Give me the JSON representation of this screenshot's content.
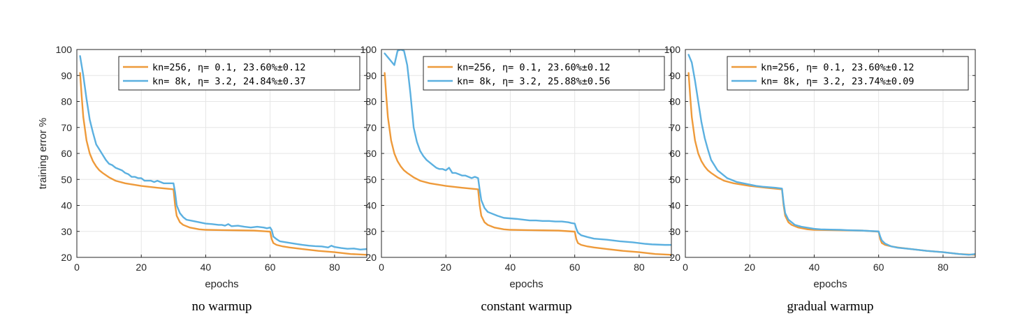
{
  "chart_data": [
    {
      "type": "line",
      "title": "",
      "caption": "no warmup",
      "xlabel": "epochs",
      "ylabel": "training error %",
      "xlim": [
        0,
        90
      ],
      "ylim": [
        20,
        100
      ],
      "xticks": [
        0,
        20,
        40,
        60,
        80
      ],
      "yticks": [
        20,
        30,
        40,
        50,
        60,
        70,
        80,
        90,
        100
      ],
      "grid": true,
      "legend_position": "top-right",
      "series": [
        {
          "name": "kn=256, η= 0.1, 23.60%±0.12",
          "color": "#EE9A3A",
          "x": [
            1,
            1.5,
            2,
            3,
            4,
            5,
            6,
            7,
            8,
            10,
            12,
            15,
            20,
            25,
            30,
            30.5,
            31,
            32,
            33,
            35,
            38,
            40,
            45,
            50,
            55,
            60,
            60.5,
            61,
            62,
            64,
            66,
            70,
            75,
            80,
            85,
            90
          ],
          "y": [
            91,
            82,
            74,
            65,
            60,
            57,
            55,
            53.5,
            52.5,
            50.8,
            49.5,
            48.5,
            47.5,
            46.8,
            46.2,
            40,
            36,
            33.5,
            32.5,
            31.5,
            30.8,
            30.6,
            30.5,
            30.4,
            30.3,
            29.9,
            27,
            25.5,
            24.8,
            24.2,
            23.8,
            23.2,
            22.5,
            22,
            21.3,
            21
          ]
        },
        {
          "name": "kn= 8k, η= 3.2, 24.84%±0.37",
          "color": "#5BB0E0",
          "x": [
            1,
            2,
            3,
            4,
            5,
            6,
            7,
            8,
            9,
            10,
            11,
            12,
            13,
            14,
            15,
            16,
            17,
            18,
            19,
            20,
            21,
            22,
            23,
            24,
            25,
            26,
            27,
            28,
            29,
            30,
            30.5,
            31,
            32,
            33,
            34,
            36,
            38,
            40,
            42,
            44,
            45,
            46,
            47,
            48,
            50,
            52,
            54,
            56,
            58,
            59,
            60,
            60.5,
            61,
            62,
            63,
            65,
            68,
            70,
            72,
            74,
            76,
            78,
            79,
            80,
            82,
            84,
            86,
            88,
            90
          ],
          "y": [
            97.5,
            90,
            81,
            73,
            68,
            63.5,
            61.5,
            59.5,
            57.5,
            56,
            55.5,
            54.5,
            54,
            53.5,
            52.5,
            52,
            51,
            51,
            50.5,
            50.5,
            49.5,
            49.5,
            49.5,
            49,
            49.5,
            49,
            48.5,
            48.5,
            48.5,
            48.5,
            45,
            40,
            37,
            35.5,
            34.5,
            34,
            33.5,
            33,
            32.8,
            32.5,
            32.5,
            32.2,
            32.8,
            32,
            32.2,
            31.8,
            31.5,
            31.8,
            31.5,
            31.2,
            31.5,
            30.5,
            28,
            27,
            26.2,
            25.8,
            25.2,
            24.8,
            24.5,
            24.3,
            24.2,
            23.8,
            24.5,
            24,
            23.6,
            23.3,
            23.4,
            23,
            23.2
          ]
        }
      ]
    },
    {
      "type": "line",
      "title": "",
      "caption": "constant warmup",
      "xlabel": "epochs",
      "ylabel": "",
      "xlim": [
        0,
        90
      ],
      "ylim": [
        20,
        100
      ],
      "xticks": [
        0,
        20,
        40,
        60,
        80
      ],
      "yticks": [
        20,
        30,
        40,
        50,
        60,
        70,
        80,
        90,
        100
      ],
      "grid": true,
      "legend_position": "top-right",
      "series": [
        {
          "name": "kn=256, η= 0.1, 23.60%±0.12",
          "color": "#EE9A3A",
          "x": [
            1,
            1.5,
            2,
            3,
            4,
            5,
            6,
            7,
            8,
            10,
            12,
            15,
            20,
            25,
            30,
            30.5,
            31,
            32,
            33,
            35,
            38,
            40,
            45,
            50,
            55,
            60,
            60.5,
            61,
            62,
            64,
            66,
            70,
            75,
            80,
            85,
            90
          ],
          "y": [
            91,
            82,
            74,
            65,
            60,
            57,
            55,
            53.5,
            52.5,
            50.8,
            49.5,
            48.5,
            47.5,
            46.8,
            46.2,
            40,
            36,
            33.5,
            32.5,
            31.5,
            30.8,
            30.6,
            30.5,
            30.4,
            30.3,
            29.9,
            27,
            25.5,
            24.8,
            24.2,
            23.8,
            23.2,
            22.5,
            22,
            21.3,
            21
          ]
        },
        {
          "name": "kn= 8k, η= 3.2, 25.88%±0.56",
          "color": "#5BB0E0",
          "x": [
            1,
            2,
            3,
            4,
            5,
            6,
            7,
            8,
            9,
            10,
            11,
            12,
            13,
            14,
            15,
            16,
            17,
            18,
            19,
            20,
            21,
            22,
            23,
            24,
            25,
            26,
            27,
            28,
            29,
            30,
            30.5,
            31,
            32,
            33,
            34,
            36,
            38,
            40,
            42,
            44,
            46,
            48,
            50,
            52,
            54,
            56,
            58,
            59,
            60,
            60.5,
            61,
            62,
            64,
            66,
            68,
            70,
            72,
            74,
            76,
            78,
            80,
            82,
            84,
            86,
            88,
            90
          ],
          "y": [
            98.5,
            97,
            95.5,
            94,
            99.5,
            100,
            99.5,
            94,
            83,
            70,
            64.5,
            61,
            59,
            57.5,
            56.5,
            55.5,
            54.5,
            54,
            54,
            53.5,
            54.5,
            52.5,
            52.5,
            52,
            51.5,
            51.5,
            51,
            50.5,
            51,
            50.5,
            46,
            42,
            39,
            37.5,
            37,
            36,
            35.2,
            35,
            34.8,
            34.5,
            34.2,
            34.2,
            34,
            34,
            33.8,
            33.8,
            33.5,
            33.2,
            33,
            31,
            29.5,
            28.5,
            27.8,
            27.2,
            27,
            26.8,
            26.5,
            26.2,
            26,
            25.8,
            25.5,
            25.2,
            25,
            24.9,
            24.8,
            24.8
          ]
        }
      ]
    },
    {
      "type": "line",
      "title": "",
      "caption": "gradual warmup",
      "xlabel": "epochs",
      "ylabel": "",
      "xlim": [
        0,
        90
      ],
      "ylim": [
        20,
        100
      ],
      "xticks": [
        0,
        20,
        40,
        60,
        80
      ],
      "yticks": [
        20,
        30,
        40,
        50,
        60,
        70,
        80,
        90,
        100
      ],
      "grid": true,
      "legend_position": "top-right",
      "series": [
        {
          "name": "kn=256, η= 0.1, 23.60%±0.12",
          "color": "#EE9A3A",
          "x": [
            1,
            1.5,
            2,
            3,
            4,
            5,
            6,
            7,
            8,
            10,
            12,
            15,
            20,
            25,
            30,
            30.5,
            31,
            32,
            33,
            35,
            38,
            40,
            45,
            50,
            55,
            60,
            60.5,
            61,
            62,
            64,
            66,
            70,
            75,
            80,
            85,
            90
          ],
          "y": [
            91,
            82,
            74,
            65,
            60,
            57,
            55,
            53.5,
            52.5,
            50.8,
            49.5,
            48.5,
            47.5,
            46.8,
            46.2,
            40,
            36,
            33.5,
            32.5,
            31.5,
            30.8,
            30.6,
            30.5,
            30.4,
            30.3,
            29.9,
            27,
            25.5,
            24.8,
            24.2,
            23.8,
            23.2,
            22.5,
            22,
            21.3,
            21
          ]
        },
        {
          "name": "kn= 8k, η= 3.2, 23.74%±0.09",
          "color": "#5BB0E0",
          "x": [
            1,
            2,
            3,
            4,
            5,
            6,
            7,
            8,
            9,
            10,
            11,
            12,
            13,
            14,
            15,
            16,
            18,
            20,
            22,
            24,
            26,
            28,
            30,
            30.5,
            31,
            32,
            34,
            36,
            38,
            40,
            42,
            45,
            48,
            50,
            52,
            55,
            58,
            60,
            60.5,
            61,
            62,
            64,
            66,
            70,
            75,
            80,
            85,
            88,
            90
          ],
          "y": [
            98,
            95,
            88,
            80,
            72,
            66,
            61.5,
            57.5,
            55.5,
            53.5,
            52.5,
            51.5,
            50.5,
            50,
            49.5,
            49,
            48.5,
            48,
            47.5,
            47.2,
            47,
            46.8,
            46.5,
            41,
            37,
            34.5,
            32.5,
            31.8,
            31.4,
            31,
            30.8,
            30.7,
            30.6,
            30.5,
            30.4,
            30.3,
            30.1,
            30,
            28,
            26.5,
            25.3,
            24.2,
            23.7,
            23.2,
            22.5,
            22,
            21.3,
            21,
            21.3
          ]
        }
      ]
    }
  ]
}
